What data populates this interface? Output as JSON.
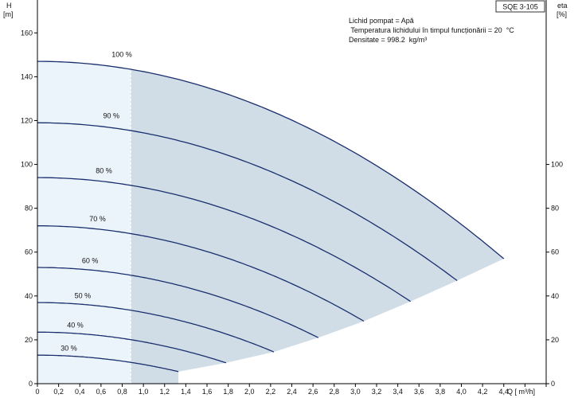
{
  "chart_data": {
    "type": "line",
    "badge": "SQE 3-105",
    "info_lines": [
      "Lichid pompat = Apă",
      " Temperatura lichidului în timpul funcționării = 20  °C",
      "Densitate = 998.2  kg/m³"
    ],
    "left_axis": {
      "label_line1": "H",
      "label_line2": "[m]",
      "ticks": [
        0,
        20,
        40,
        60,
        80,
        100,
        120,
        140,
        160
      ],
      "ylim": [
        0,
        175
      ]
    },
    "right_axis": {
      "label_line1": "eta",
      "label_line2": "[%]",
      "ticks": [
        0,
        20,
        40,
        60,
        80,
        100
      ],
      "ylim": [
        0,
        175
      ]
    },
    "x_axis": {
      "label": "Q [ m³/h]",
      "ticks": [
        "0",
        "0,2",
        "0,4",
        "0,6",
        "0,8",
        "1,0",
        "1,2",
        "1,4",
        "1,6",
        "1,8",
        "2,0",
        "2,2",
        "2,4",
        "2,6",
        "2,8",
        "3,0",
        "3,2",
        "3,4",
        "3,6",
        "3,8",
        "4,0",
        "4,2",
        "4,4"
      ],
      "xlim": [
        0,
        4.8
      ]
    },
    "operating_range": {
      "q_min_line": 0.88,
      "lower_boundary": [
        [
          1.33,
          5.5
        ],
        [
          1.78,
          9.5
        ],
        [
          2.23,
          14.5
        ],
        [
          2.65,
          21
        ],
        [
          3.08,
          28.5
        ],
        [
          3.52,
          37.5
        ],
        [
          3.96,
          47
        ],
        [
          4.4,
          57
        ]
      ]
    },
    "curve_color": "#1a2f6e",
    "fill_color_main": "#d0dce6",
    "fill_color_left": "#ecf4fb",
    "series": [
      {
        "name": "100 %",
        "h0": 147,
        "q_end": 4.4,
        "h_end": 57,
        "label_q": 0.7,
        "label_h": 148
      },
      {
        "name": "90 %",
        "h0": 119,
        "q_end": 3.96,
        "h_end": 47,
        "label_q": 0.62,
        "label_h": 120
      },
      {
        "name": "80 %",
        "h0": 94,
        "q_end": 3.52,
        "h_end": 37.5,
        "label_q": 0.55,
        "label_h": 95
      },
      {
        "name": "70 %",
        "h0": 72,
        "q_end": 3.08,
        "h_end": 28.5,
        "label_q": 0.49,
        "label_h": 73
      },
      {
        "name": "60 %",
        "h0": 53,
        "q_end": 2.65,
        "h_end": 21,
        "label_q": 0.42,
        "label_h": 54
      },
      {
        "name": "50 %",
        "h0": 37,
        "q_end": 2.23,
        "h_end": 14.5,
        "label_q": 0.35,
        "label_h": 38
      },
      {
        "name": "40 %",
        "h0": 23.5,
        "q_end": 1.78,
        "h_end": 9.5,
        "label_q": 0.28,
        "label_h": 24.5
      },
      {
        "name": "30 %",
        "h0": 13,
        "q_end": 1.33,
        "h_end": 5.5,
        "label_q": 0.22,
        "label_h": 14
      }
    ]
  }
}
